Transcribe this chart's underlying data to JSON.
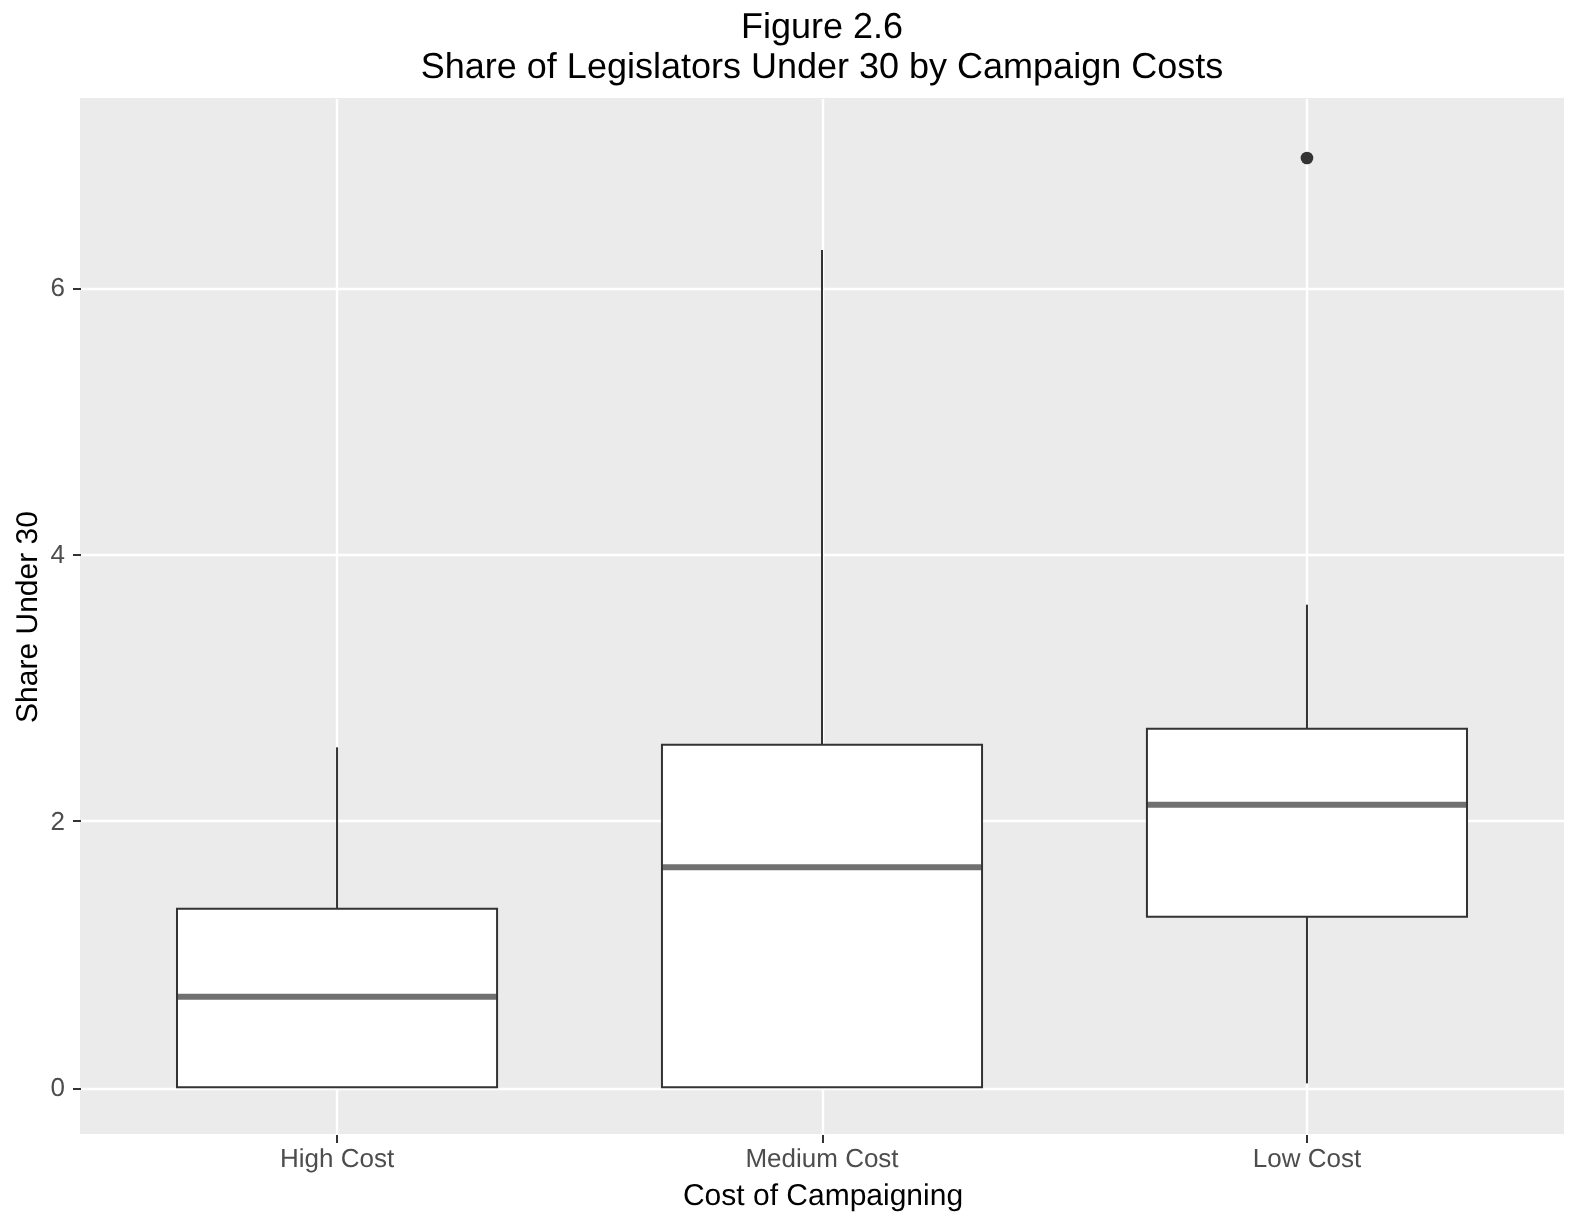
{
  "chart_data": {
    "type": "box",
    "title": "Figure 2.6",
    "subtitle": "Share of Legislators Under 30 by Campaign Costs",
    "xlabel": "Cost of Campaigning",
    "ylabel": "Share Under 30",
    "categories": [
      "High Cost",
      "Medium Cost",
      "Low Cost"
    ],
    "boxes": [
      {
        "low": 0,
        "q1": 0,
        "median": 0.68,
        "q3": 1.34,
        "high": 2.55
      },
      {
        "low": 0,
        "q1": 0,
        "median": 1.65,
        "q3": 2.57,
        "high": 6.28
      },
      {
        "low": 0.03,
        "q1": 1.28,
        "median": 2.12,
        "q3": 2.69,
        "high": 3.62,
        "outliers": [
          6.97
        ]
      }
    ],
    "ylim": [
      -0.35,
      7.42
    ],
    "yticks": [
      0,
      2,
      4,
      6
    ],
    "grid": true
  }
}
